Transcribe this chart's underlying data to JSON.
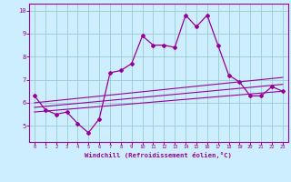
{
  "title": "",
  "xlabel": "Windchill (Refroidissement éolien,°C)",
  "x_values": [
    0,
    1,
    2,
    3,
    4,
    5,
    6,
    7,
    8,
    9,
    10,
    11,
    12,
    13,
    14,
    15,
    16,
    17,
    18,
    19,
    20,
    21,
    22,
    23
  ],
  "main_line": [
    6.3,
    5.7,
    5.5,
    5.6,
    5.1,
    4.7,
    5.3,
    7.3,
    7.4,
    7.7,
    8.9,
    8.5,
    8.5,
    8.4,
    9.8,
    9.3,
    9.8,
    8.5,
    7.2,
    6.9,
    6.3,
    6.3,
    6.7,
    6.5
  ],
  "trend1_x": [
    0,
    23
  ],
  "trend1_y": [
    6.0,
    7.1
  ],
  "trend2_x": [
    0,
    23
  ],
  "trend2_y": [
    5.8,
    6.8
  ],
  "trend3_x": [
    0,
    23
  ],
  "trend3_y": [
    5.6,
    6.5
  ],
  "line_color": "#990099",
  "bg_color": "#cceeff",
  "grid_color": "#99cccc",
  "ylim": [
    4.3,
    10.3
  ],
  "yticks": [
    5,
    6,
    7,
    8,
    9,
    10
  ],
  "xlim": [
    -0.5,
    23.5
  ]
}
